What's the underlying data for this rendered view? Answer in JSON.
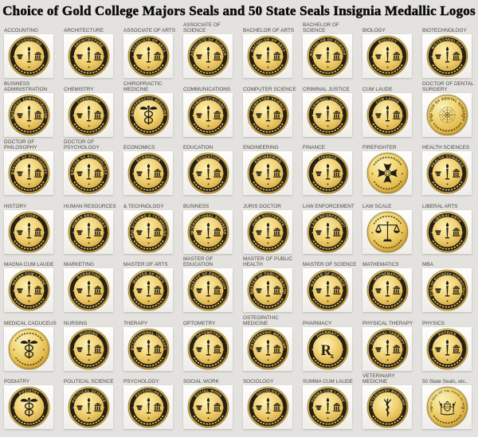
{
  "title": "Choice of Gold College Majors Seals and 50 State Seals Insignia Medallic Logos",
  "colors": {
    "page_bg": "#e4e2de",
    "tile_bg": "#fdfdfc",
    "gold_light": "#faf0b8",
    "gold_mid": "#eccc5f",
    "gold_dark": "#c99c30",
    "band_dark": "#262015",
    "band_text_gold": "#eecb6d",
    "engraved_dark": "#3d3112",
    "label_text": "#4a4a47",
    "title_text": "#0c0c0c"
  },
  "grid": {
    "columns": 8,
    "rows": 7
  },
  "seals": [
    {
      "label": "ACCOUNTING",
      "ring": "ACCOUNTING",
      "type": "generic",
      "band": true
    },
    {
      "label": "ARCHITECTURE",
      "ring": "ARCHITECTURE",
      "type": "generic",
      "band": true
    },
    {
      "label": "ASSOCIATE OF ARTS",
      "ring": "ASSOCIATE OF ARTS",
      "type": "generic",
      "band": true
    },
    {
      "label": "ASSOCIATE OF SCIENCE",
      "ring": "ASSOCIATE OF SCIENCE",
      "type": "generic",
      "band": true
    },
    {
      "label": "BACHELOR OF ARTS",
      "ring": "BACHELOR OF ARTS",
      "type": "generic",
      "band": true
    },
    {
      "label": "BACHELOR OF SCIENCE",
      "ring": "BACHELOR OF SCIENCE",
      "type": "generic",
      "band": true
    },
    {
      "label": "BIOLOGY",
      "ring": "BIOLOGY",
      "type": "generic",
      "band": true
    },
    {
      "label": "BIOTECHNOLOGY",
      "ring": "BIOTECHNOLOGY",
      "type": "generic",
      "band": true
    },
    {
      "label": "BUSINESS ADMINISTRATION",
      "ring": "BUSINESS ADMINISTRATION",
      "type": "generic",
      "band": true
    },
    {
      "label": "CHEMISTRY",
      "ring": "CHEMISTRY",
      "type": "generic",
      "band": true
    },
    {
      "label": "CHIROPRACTIC MEDICINE",
      "ring": "CHIROPRACTIC MEDICINE",
      "type": "caduceus",
      "band": true
    },
    {
      "label": "COMMUNICATIONS",
      "ring": "COMMUNICATIONS",
      "type": "generic",
      "band": true
    },
    {
      "label": "COMPUTER SCIENCE",
      "ring": "COMPUTER SCIENCE",
      "type": "generic",
      "band": true
    },
    {
      "label": "CRIMINAL JUSTICE",
      "ring": "CRIMINAL JUSTICE",
      "type": "generic",
      "band": true
    },
    {
      "label": "CUM LAUDE",
      "ring": "CUM LAUDE",
      "type": "generic",
      "band": true
    },
    {
      "label": "DOCTOR OF DENTAL SURGERY",
      "ring": "DOCTOR OF DENTAL SURGERY",
      "type": "dental",
      "band": false
    },
    {
      "label": "DOCTOR OF PHILOSOPHY",
      "ring": "DOCTOR OF PHILOSOPHY",
      "type": "generic",
      "band": true
    },
    {
      "label": "DOCTOR OF PSYCHOLOGY",
      "ring": "DOCTOR OF PSYCHOLOGY",
      "type": "generic",
      "band": true
    },
    {
      "label": "ECONOMICS",
      "ring": "ECONOMICS",
      "type": "generic",
      "band": true
    },
    {
      "label": "EDUCATION",
      "ring": "EDUCATION",
      "type": "generic",
      "band": true
    },
    {
      "label": "ENGINEERING",
      "ring": "ENGINEERING",
      "type": "generic",
      "band": true
    },
    {
      "label": "FINANCE",
      "ring": "FINANCE",
      "type": "generic",
      "band": true
    },
    {
      "label": "FIREFIGHTER",
      "ring": "",
      "type": "maltese",
      "band": false
    },
    {
      "label": "HEALTH SCIENCES",
      "ring": "HEALTH SCIENCES",
      "type": "generic",
      "band": true
    },
    {
      "label": "HISTORY",
      "ring": "HISTORY",
      "type": "generic",
      "band": true
    },
    {
      "label": "HUMAN RESOURCES",
      "ring": "HUMAN RESOURCES",
      "type": "generic",
      "band": true
    },
    {
      "label": "& TECHNOLOGY",
      "ring": "INFO SYSTEMS & TECHNOLOGY",
      "type": "generic",
      "band": true
    },
    {
      "label": "BUSINESS",
      "ring": "INTERNATIONAL BUSINESS",
      "type": "generic",
      "band": true
    },
    {
      "label": "JURIS DOCTOR",
      "ring": "JURIS DOCTORATE",
      "type": "generic",
      "band": true
    },
    {
      "label": "LAW ENFORCEMENT",
      "ring": "LAW ENFORCEMENT",
      "type": "generic",
      "band": true
    },
    {
      "label": "LAW SCALE",
      "ring": "",
      "type": "scales",
      "band": false
    },
    {
      "label": "LIBERAL ARTS",
      "ring": "LIBERAL ARTS",
      "type": "generic",
      "band": true
    },
    {
      "label": "MAGNA CUM LAUDE",
      "ring": "MAGNA CUM LAUDE",
      "type": "generic",
      "band": true
    },
    {
      "label": "MARKETING",
      "ring": "MARKETING",
      "type": "generic",
      "band": true
    },
    {
      "label": "MASTER OF ARTS",
      "ring": "MASTER OF ARTS",
      "type": "generic",
      "band": true
    },
    {
      "label": "MASTER OF EDUCATION",
      "ring": "MASTER OF EDUCATION",
      "type": "generic",
      "band": true
    },
    {
      "label": "MASTER OF PUBLIC HEALTH",
      "ring": "MASTER OF PUBLIC HEALTH",
      "type": "generic",
      "band": true
    },
    {
      "label": "MASTER OF SCIENCE",
      "ring": "MASTER OF SCIENCE",
      "type": "generic",
      "band": true
    },
    {
      "label": "MATHEMATICS",
      "ring": "MATHEMATICS",
      "type": "generic",
      "band": true
    },
    {
      "label": "MBA",
      "ring": "MASTER OF BUSINESS ADMINISTRATION",
      "type": "generic",
      "band": true
    },
    {
      "label": "MEDICAL CADUCEUS",
      "ring": "",
      "type": "caduceus",
      "band": false
    },
    {
      "label": "NURSING",
      "ring": "NURSING",
      "type": "generic",
      "band": true
    },
    {
      "label": "THERAPY",
      "ring": "OCCUPATIONAL THERAPY",
      "type": "generic",
      "band": true
    },
    {
      "label": "OPTOMETRY",
      "ring": "OPTOMETRY",
      "type": "generic",
      "band": true
    },
    {
      "label": "OSTEOPATHIC MEDICINE",
      "ring": "OSTEOPATHIC MEDICINE",
      "type": "generic",
      "band": true
    },
    {
      "label": "PHARMACY",
      "ring": "PHARMACY",
      "type": "rx",
      "band": true
    },
    {
      "label": "PHYSICAL THERAPY",
      "ring": "PHYSICAL THERAPY",
      "type": "generic",
      "band": true
    },
    {
      "label": "PHYSICS",
      "ring": "PHYSICS",
      "type": "generic",
      "band": true
    },
    {
      "label": "PODIATRY",
      "ring": "PODIATRY",
      "type": "caduceus",
      "band": true
    },
    {
      "label": "POLITICAL SCIENCE",
      "ring": "POLITICAL SCIENCE",
      "type": "generic",
      "band": true
    },
    {
      "label": "PSYCHOLOGY",
      "ring": "PSYCHOLOGY",
      "type": "generic",
      "band": true
    },
    {
      "label": "SOCIAL WORK",
      "ring": "SOCIAL WORK",
      "type": "generic",
      "band": true
    },
    {
      "label": "SOCIOLOGY",
      "ring": "SOCIOLOGY",
      "type": "generic",
      "band": true
    },
    {
      "label": "SUMMA CUM LAUDE",
      "ring": "SUMMA CUM LAUDE",
      "type": "generic",
      "band": true
    },
    {
      "label": "VETERINARY MEDICINE",
      "ring": "VETERINARY MEDICINE",
      "type": "vet",
      "band": true
    },
    {
      "label": "50 State Seals, etc..",
      "ring": "THE GREAT SEAL OF THE STATE OF NEW YORK",
      "type": "state",
      "band": false
    }
  ]
}
